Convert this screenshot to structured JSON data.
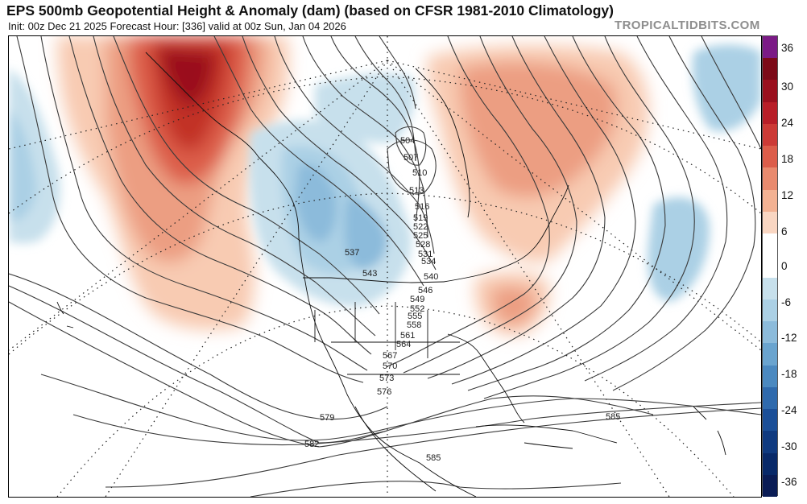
{
  "header": {
    "title": "EPS 500mb Geopotential Height & Anomaly (dam) (based on CFSR 1981-2010 Climatology)",
    "subtitle": "Init: 00z Dec 21 2025   Forecast Hour: [336]   valid at 00z Sun, Jan 04 2026",
    "watermark": "TROPICALTIDBITS.COM"
  },
  "colorbar": {
    "labels": [
      "36",
      "30",
      "24",
      "18",
      "12",
      "6",
      "0",
      "-6",
      "-12",
      "-18",
      "-24",
      "-30",
      "-36"
    ],
    "colors": [
      "#7b1a86",
      "#7c0a18",
      "#9a101e",
      "#b81e28",
      "#cc3a36",
      "#dc5d4a",
      "#e98a6e",
      "#f3b293",
      "#f9d6c2",
      "#ffffff",
      "#ffffff",
      "#c7e0ec",
      "#abd0e5",
      "#8cbbdb",
      "#6aa4cf",
      "#4b89c0",
      "#2f6aad",
      "#1b4f98",
      "#0f3a80",
      "#082969",
      "#0a1c55"
    ]
  },
  "map": {
    "contour_labels": [
      "504",
      "507",
      "510",
      "513",
      "516",
      "519",
      "522",
      "525",
      "528",
      "531",
      "534",
      "537",
      "540",
      "543",
      "546",
      "549",
      "552",
      "555",
      "558",
      "561",
      "564",
      "567",
      "570",
      "573",
      "576",
      "579",
      "582",
      "585",
      "585"
    ]
  }
}
